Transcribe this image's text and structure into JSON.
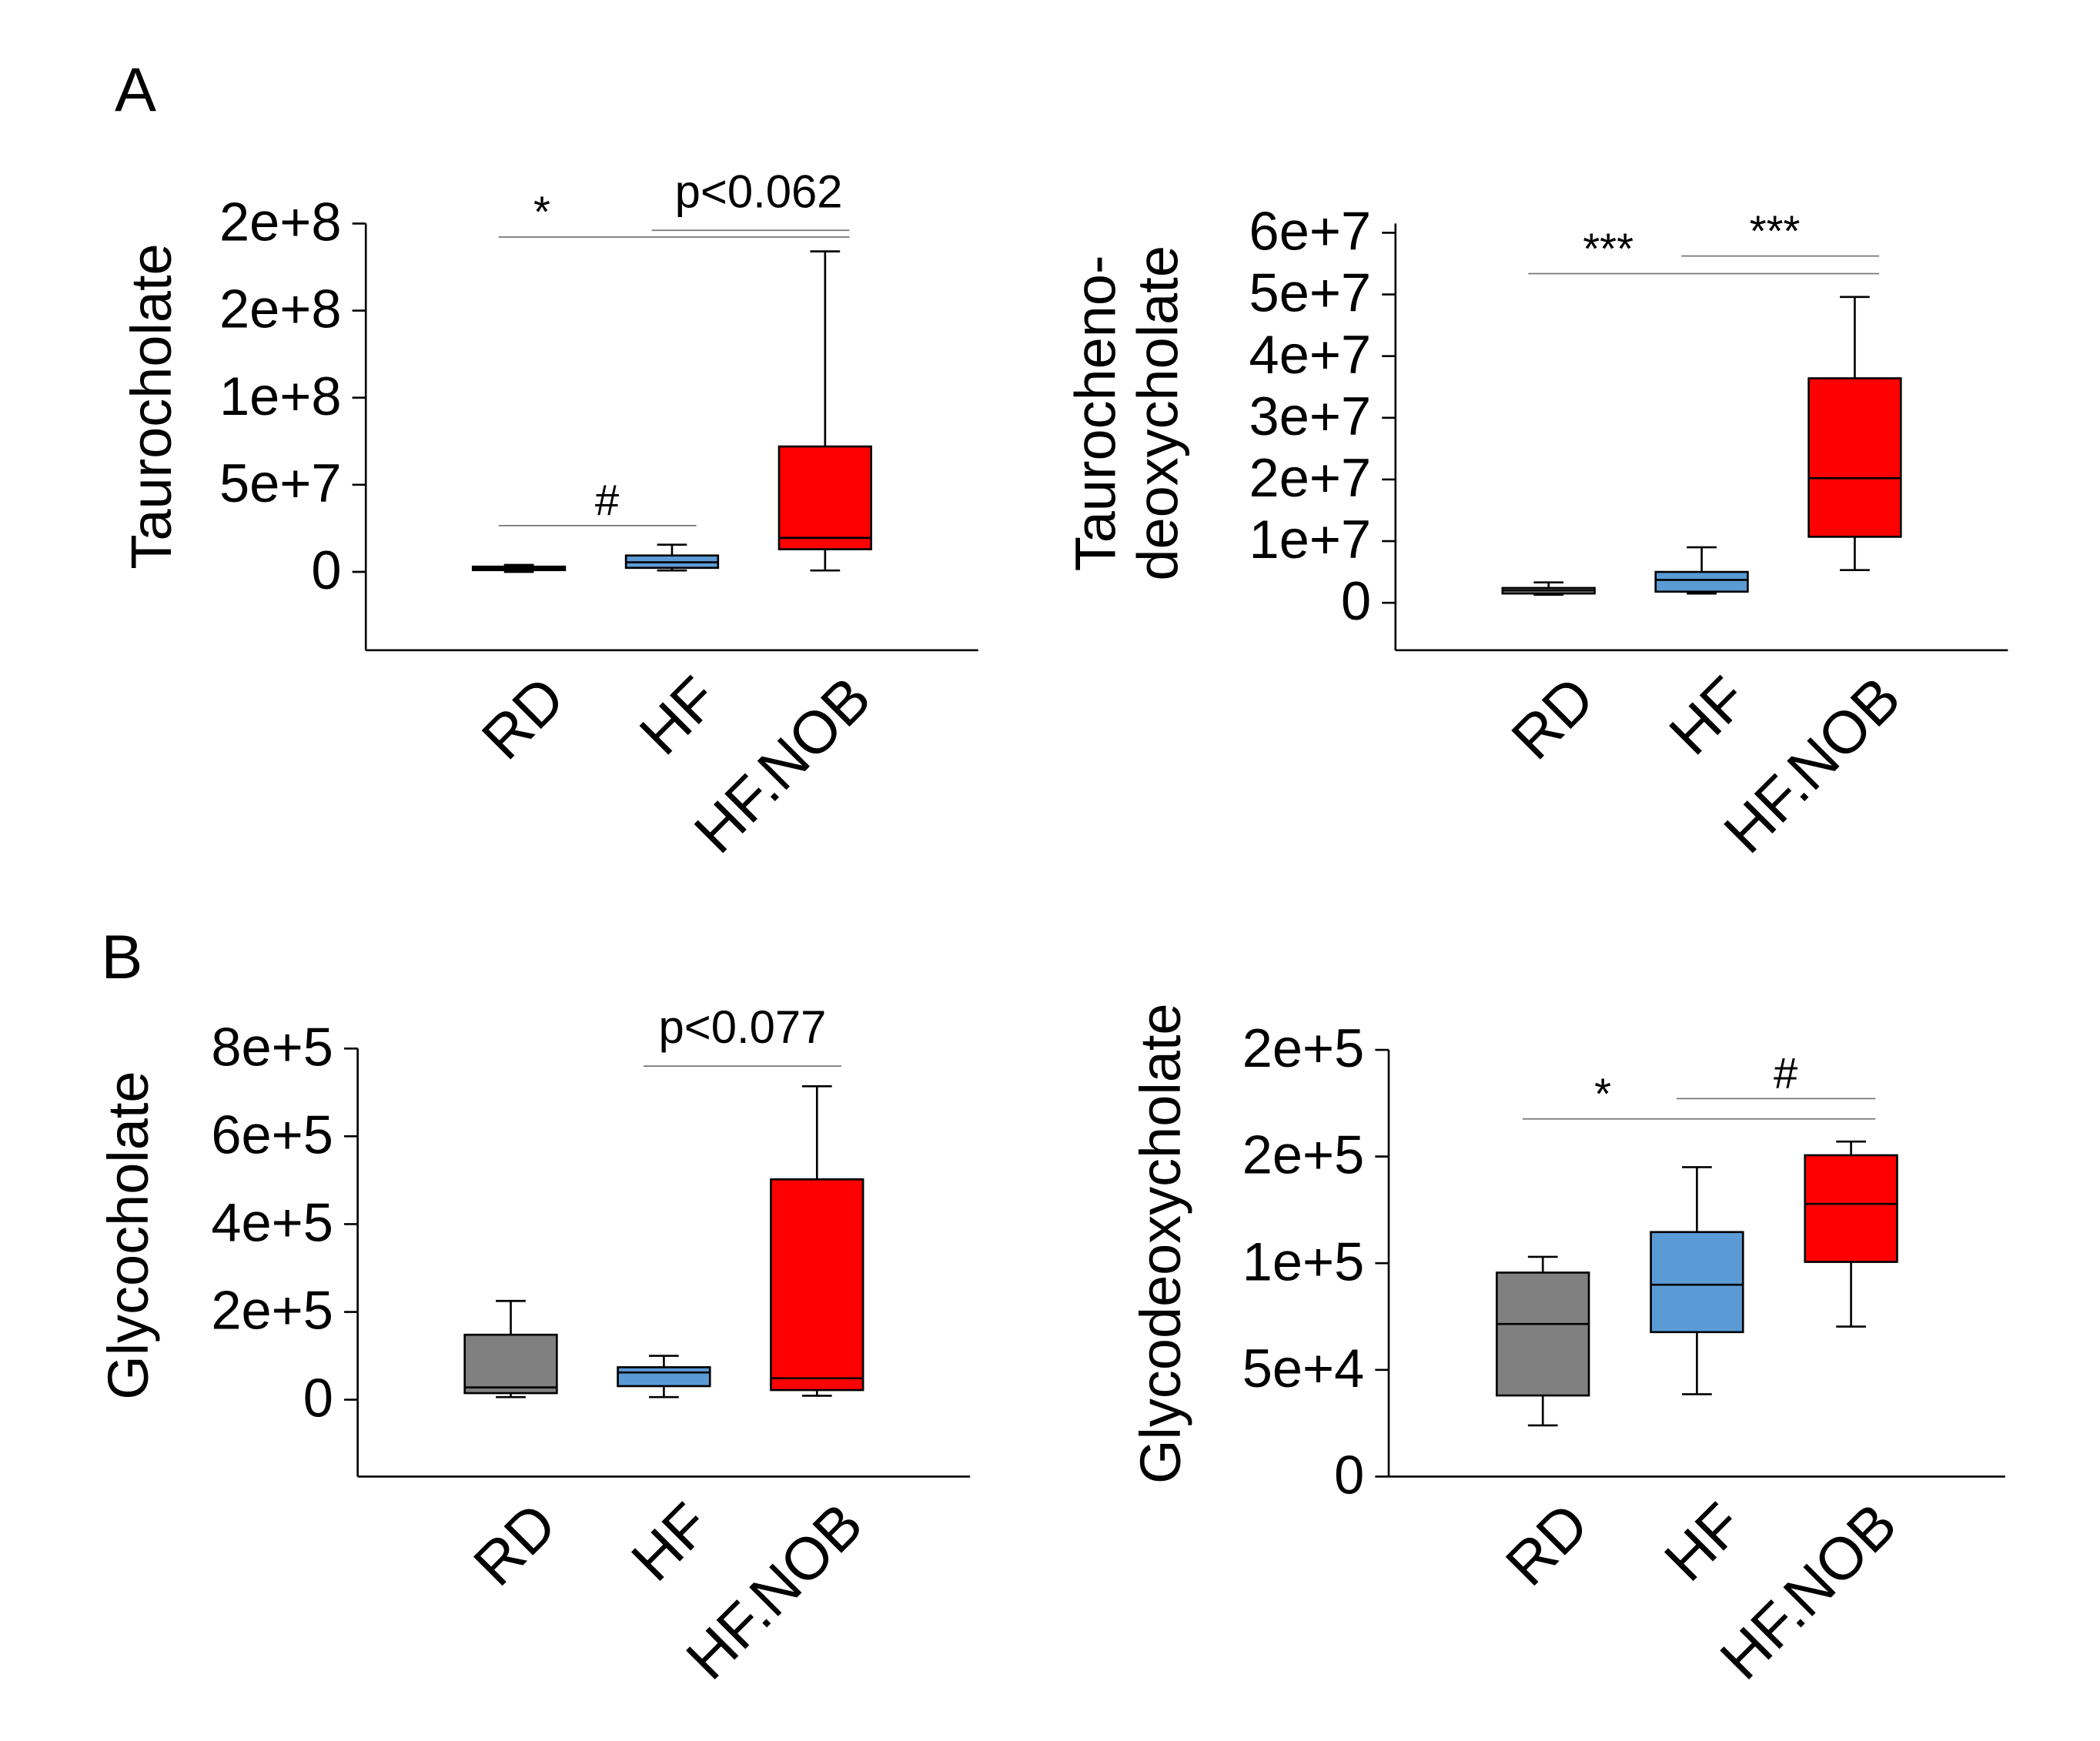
{
  "panel_labels": [
    "A",
    "B"
  ],
  "chart_data": [
    {
      "type": "box",
      "ylabel": [
        "Taurocholate"
      ],
      "categories": [
        "RD",
        "HF",
        "HF.NOB"
      ],
      "colors": [
        "#808080",
        "#5b9bd5",
        "#ff0000"
      ],
      "boxes": [
        {
          "min": 0,
          "q1": 1000000,
          "median": 2000000,
          "q3": 3000000,
          "max": 4000000
        },
        {
          "min": 800000,
          "q1": 2300000,
          "median": 5500000,
          "q3": 9400000,
          "max": 15600000
        },
        {
          "min": 800000,
          "q1": 13000000,
          "median": 19500000,
          "q3": 72000000,
          "max": 184000000
        }
      ],
      "ylim": [
        -45000000,
        200000000
      ],
      "yticks": [
        0,
        {
          "value": 50000000,
          "label": "5e+7"
        },
        {
          "value": 100000000,
          "label": "1e+8"
        },
        {
          "value": 150000000,
          "label": "2e+8"
        },
        {
          "value": 200000000,
          "label": "2e+8"
        }
      ],
      "annotations": [
        "*",
        "p<0.062",
        "#"
      ]
    },
    {
      "type": "box",
      "ylabel": [
        "Taurocheno-",
        "deoxycholate"
      ],
      "categories": [
        "RD",
        "HF",
        "HF.NOB"
      ],
      "colors": [
        "#808080",
        "#5b9bd5",
        "#ff0000"
      ],
      "boxes": [
        {
          "min": 1300000,
          "q1": 1500000,
          "median": 2000000,
          "q3": 2400000,
          "max": 3300000
        },
        {
          "min": 1500000,
          "q1": 1800000,
          "median": 3700000,
          "q3": 5000000,
          "max": 9000000
        },
        {
          "min": 5300000,
          "q1": 10700000,
          "median": 20200000,
          "q3": 36400000,
          "max": 49600000
        }
      ],
      "ylim": [
        -7700000,
        61500000
      ],
      "yticks": [
        0,
        {
          "value": 10000000,
          "label": "1e+7"
        },
        {
          "value": 20000000,
          "label": "2e+7"
        },
        {
          "value": 30000000,
          "label": "3e+7"
        },
        {
          "value": 40000000,
          "label": "4e+7"
        },
        {
          "value": 50000000,
          "label": "5e+7"
        },
        {
          "value": 60000000,
          "label": "6e+7"
        }
      ],
      "annotations": [
        "***",
        "***"
      ]
    },
    {
      "type": "box",
      "ylabel": [
        "Glycocholate"
      ],
      "categories": [
        "RD",
        "HF",
        "HF.NOB"
      ],
      "colors": [
        "#808080",
        "#5b9bd5",
        "#ff0000"
      ],
      "boxes": [
        {
          "min": 6000,
          "q1": 15000,
          "median": 28000,
          "q3": 148000,
          "max": 225000
        },
        {
          "min": 6000,
          "q1": 31000,
          "median": 62000,
          "q3": 74000,
          "max": 100000
        },
        {
          "min": 9000,
          "q1": 22000,
          "median": 49000,
          "q3": 502000,
          "max": 714000
        }
      ],
      "ylim": [
        -175000,
        800000
      ],
      "yticks": [
        0,
        {
          "value": 200000,
          "label": "2e+5"
        },
        {
          "value": 400000,
          "label": "4e+5"
        },
        {
          "value": 600000,
          "label": "6e+5"
        },
        {
          "value": 800000,
          "label": "8e+5"
        }
      ],
      "annotations": [
        "p<0.077"
      ]
    },
    {
      "type": "box",
      "ylabel": [
        "Glycodeoxycholate"
      ],
      "categories": [
        "RD",
        "HF",
        "HF.NOB"
      ],
      "colors": [
        "#808080",
        "#5b9bd5",
        "#ff0000"
      ],
      "boxes": [
        {
          "min": 24000,
          "q1": 38000,
          "median": 71500,
          "q3": 95600,
          "max": 103000
        },
        {
          "min": 38600,
          "q1": 67700,
          "median": 89900,
          "q3": 114600,
          "max": 145000
        },
        {
          "min": 70300,
          "q1": 100600,
          "median": 127800,
          "q3": 150600,
          "max": 157000
        }
      ],
      "ylim": [
        0,
        200000
      ],
      "yticks": [
        0,
        {
          "value": 50000,
          "label": "5e+4"
        },
        {
          "value": 100000,
          "label": "1e+5"
        },
        {
          "value": 150000,
          "label": "2e+5"
        },
        {
          "value": 200000,
          "label": "2e+5"
        }
      ],
      "annotations": [
        "*",
        "#"
      ]
    }
  ]
}
